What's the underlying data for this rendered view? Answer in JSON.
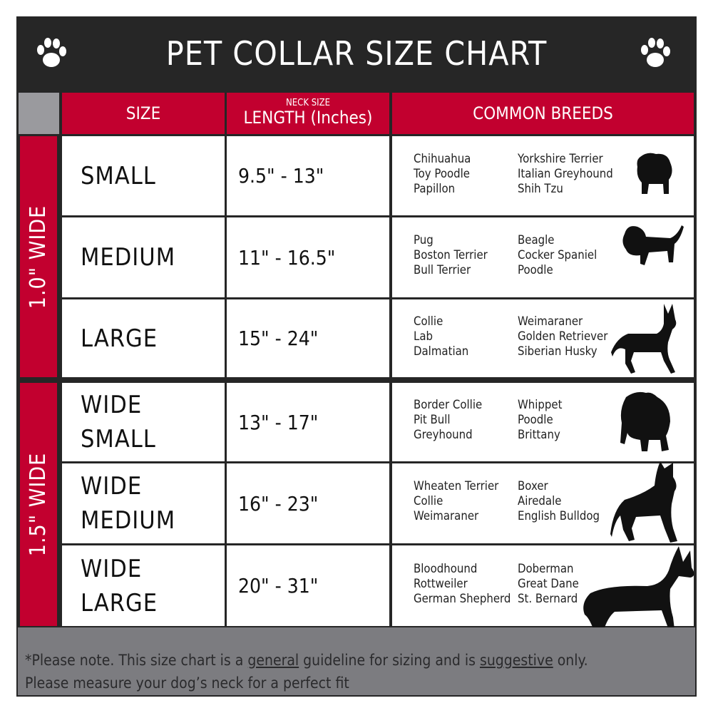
{
  "title": "PET COLLAR SIZE CHART",
  "headers": {
    "size": "SIZE",
    "length_small": "NECK SIZE",
    "length": "LENGTH (Inches)",
    "breeds": "COMMON BREEDS"
  },
  "groups": [
    {
      "label": "1.0\" WIDE"
    },
    {
      "label": "1.5\" WIDE"
    }
  ],
  "rows": [
    {
      "size": "SMALL",
      "length": "9.5\" - 13\"",
      "breeds_a": [
        "Chihuahua",
        "Toy Poodle",
        "Papillon"
      ],
      "breeds_b": [
        "Yorkshire Terrier",
        "Italian Greyhound",
        "Shih Tzu"
      ]
    },
    {
      "size": "MEDIUM",
      "length": "11\" - 16.5\"",
      "breeds_a": [
        "Pug",
        "Boston Terrier",
        "Bull Terrier"
      ],
      "breeds_b": [
        "Beagle",
        "Cocker Spaniel",
        "Poodle"
      ]
    },
    {
      "size": "LARGE",
      "length": "15\" - 24\"",
      "breeds_a": [
        "Collie",
        "Lab",
        "Dalmatian"
      ],
      "breeds_b": [
        "Weimaraner",
        "Golden Retriever",
        "Siberian Husky"
      ]
    },
    {
      "size1": "WIDE",
      "size2": "SMALL",
      "length": "13\" - 17\"",
      "breeds_a": [
        "Border Collie",
        "Pit Bull",
        "Greyhound"
      ],
      "breeds_b": [
        "Whippet",
        "Poodle",
        "Brittany"
      ]
    },
    {
      "size1": "WIDE",
      "size2": "MEDIUM",
      "length": "16\" - 23\"",
      "breeds_a": [
        "Wheaten Terrier",
        "Collie",
        "Weimaraner"
      ],
      "breeds_b": [
        "Boxer",
        "Airedale",
        "English Bulldog"
      ]
    },
    {
      "size1": "WIDE",
      "size2": "LARGE",
      "length": "20\" - 31\"",
      "breeds_a": [
        "Bloodhound",
        "Rottweiler",
        "German Shepherd"
      ],
      "breeds_b": [
        "Doberman",
        "Great Dane",
        "St. Bernard"
      ]
    }
  ],
  "footer": {
    "p1": "*Please note. This size chart is a ",
    "u1": "general",
    "p2": " guideline for sizing and is ",
    "u2": "suggestive",
    "p3": " only.",
    "line2": "Please measure your dog’s neck for a perfect fit"
  },
  "colors": {
    "red": "#c2002f",
    "dark": "#262626",
    "gray": "#7c7c80"
  }
}
